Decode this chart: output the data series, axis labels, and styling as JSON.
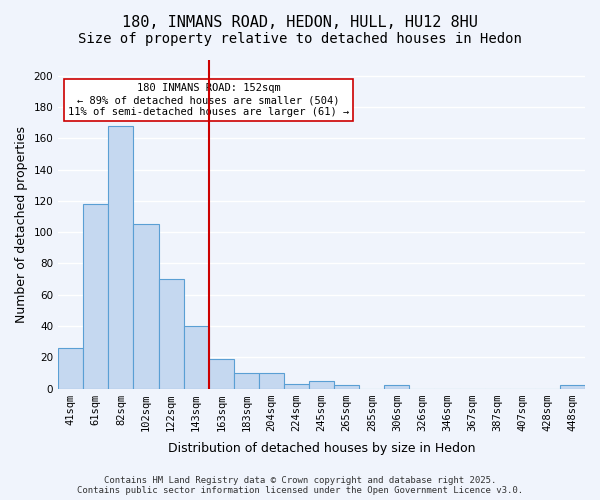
{
  "title1": "180, INMANS ROAD, HEDON, HULL, HU12 8HU",
  "title2": "Size of property relative to detached houses in Hedon",
  "xlabel": "Distribution of detached houses by size in Hedon",
  "ylabel": "Number of detached properties",
  "categories": [
    "41sqm",
    "61sqm",
    "82sqm",
    "102sqm",
    "122sqm",
    "143sqm",
    "163sqm",
    "183sqm",
    "204sqm",
    "224sqm",
    "245sqm",
    "265sqm",
    "285sqm",
    "306sqm",
    "326sqm",
    "346sqm",
    "367sqm",
    "387sqm",
    "407sqm",
    "428sqm",
    "448sqm"
  ],
  "values": [
    26,
    118,
    168,
    105,
    70,
    40,
    19,
    10,
    10,
    3,
    5,
    2,
    0,
    2,
    0,
    0,
    0,
    0,
    0,
    0,
    2
  ],
  "bar_color": "#c5d8f0",
  "bar_edge_color": "#5a9fd4",
  "vline_x": 5,
  "vline_color": "#cc0000",
  "annotation_text": "180 INMANS ROAD: 152sqm\n← 89% of detached houses are smaller (504)\n11% of semi-detached houses are larger (61) →",
  "annotation_box_color": "#ffffff",
  "annotation_box_edge": "#cc0000",
  "ylim": [
    0,
    210
  ],
  "yticks": [
    0,
    20,
    40,
    60,
    80,
    100,
    120,
    140,
    160,
    180,
    200
  ],
  "footer": "Contains HM Land Registry data © Crown copyright and database right 2025.\nContains public sector information licensed under the Open Government Licence v3.0.",
  "background_color": "#f0f4fc",
  "grid_color": "#ffffff",
  "title_fontsize": 11,
  "subtitle_fontsize": 10,
  "tick_fontsize": 7.5,
  "ylabel_fontsize": 9,
  "xlabel_fontsize": 9
}
